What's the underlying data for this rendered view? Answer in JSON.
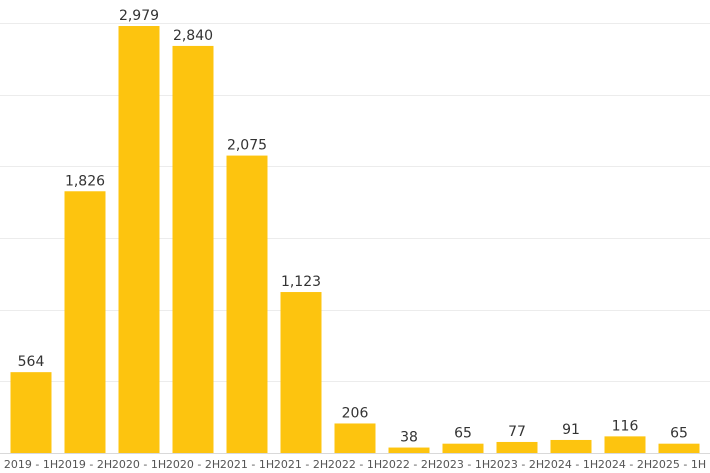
{
  "chart_data": {
    "type": "bar",
    "title": "",
    "xlabel": "",
    "ylabel": "",
    "categories": [
      "2019 - 1H",
      "2019 - 2H",
      "2020 - 1H",
      "2020 - 2H",
      "2021 - 1H",
      "2021 - 2H",
      "2022 - 1H",
      "2022 - 2H",
      "2023 - 1H",
      "2023 - 2H",
      "2024 - 1H",
      "2024 - 2H",
      "2025 - 1H"
    ],
    "values": [
      564,
      1826,
      2979,
      2840,
      2075,
      1123,
      206,
      38,
      65,
      77,
      91,
      116,
      65
    ],
    "data_labels": [
      "564",
      "1,826",
      "2,979",
      "2,840",
      "2,075",
      "1,123",
      "206",
      "38",
      "65",
      "77",
      "91",
      "116",
      "65"
    ],
    "ylim": [
      0,
      3000
    ],
    "ygrid_step": 500,
    "grid": true,
    "y_axis_labels_shown": false,
    "colors": {
      "bar": "#fdc40f"
    }
  }
}
